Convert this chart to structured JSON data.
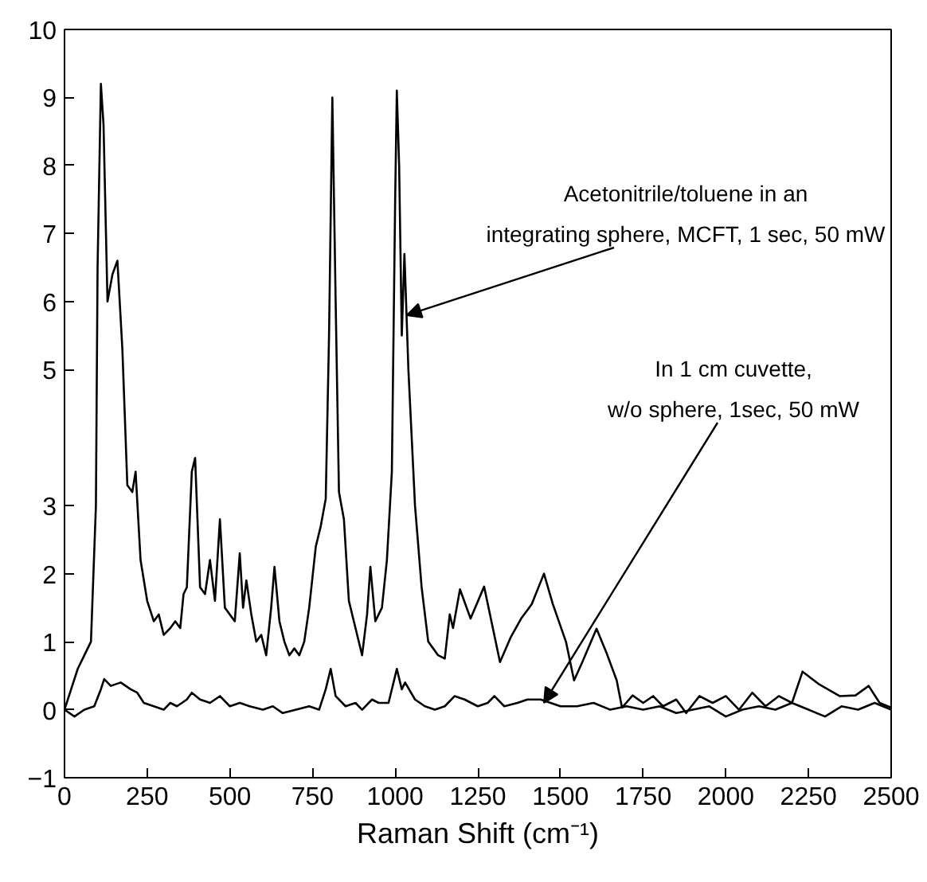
{
  "chart_data": {
    "type": "line",
    "xlabel": "Raman Shift (cm⁻¹)",
    "xlim": [
      0,
      2500
    ],
    "xticks": [
      0,
      250,
      500,
      750,
      1000,
      1250,
      1500,
      1750,
      2000,
      2250,
      2500
    ],
    "ylim": [
      -1,
      10
    ],
    "yticks": [
      -1,
      0,
      1,
      2,
      3,
      5,
      6,
      7,
      8,
      9,
      10
    ],
    "grid": false,
    "marker": "none",
    "line_style": "solid",
    "series": [
      {
        "color": "#000000",
        "x": [
          0,
          20,
          40,
          60,
          80,
          95,
          100,
          110,
          118,
          130,
          145,
          160,
          175,
          190,
          205,
          215,
          230,
          250,
          270,
          285,
          300,
          320,
          335,
          350,
          360,
          370,
          385,
          395,
          410,
          425,
          440,
          455,
          470,
          485,
          500,
          515,
          530,
          540,
          550,
          565,
          580,
          595,
          610,
          625,
          635,
          650,
          665,
          680,
          695,
          710,
          725,
          740,
          760,
          775,
          790,
          800,
          810,
          820,
          830,
          845,
          860,
          880,
          900,
          915,
          925,
          940,
          960,
          975,
          990,
          1000,
          1005,
          1012,
          1020,
          1028,
          1040,
          1060,
          1080,
          1100,
          1115,
          1130,
          1150,
          1165,
          1175,
          1196,
          1228,
          1269,
          1317,
          1349,
          1381,
          1413,
          1450,
          1477,
          1517,
          1541,
          1566,
          1609,
          1638,
          1670,
          1686,
          1718,
          1750,
          1780,
          1810,
          1850,
          1880,
          1920,
          1960,
          2000,
          2040,
          2080,
          2120,
          2160,
          2200,
          2232,
          2280,
          2344,
          2392,
          2432,
          2465,
          2500
        ],
        "values": [
          0,
          0.3,
          0.6,
          0.8,
          1.0,
          3,
          6.5,
          9.2,
          8.6,
          6.0,
          6.4,
          6.6,
          5.3,
          3.3,
          3.2,
          3.5,
          2.2,
          1.6,
          1.3,
          1.4,
          1.1,
          1.2,
          1.3,
          1.2,
          1.7,
          1.8,
          3.5,
          3.7,
          1.8,
          1.7,
          2.2,
          1.6,
          2.8,
          1.5,
          1.4,
          1.3,
          2.3,
          1.5,
          1.9,
          1.4,
          1.0,
          1.1,
          0.8,
          1.5,
          2.1,
          1.3,
          1.0,
          0.8,
          0.9,
          0.8,
          1.0,
          1.5,
          2.4,
          2.7,
          3.1,
          5.5,
          9.0,
          6.0,
          3.2,
          2.8,
          1.6,
          1.2,
          0.8,
          1.4,
          2.1,
          1.3,
          1.5,
          2.2,
          3.5,
          7.5,
          9.1,
          8.0,
          5.5,
          6.7,
          5.0,
          3.0,
          1.8,
          1.0,
          0.9,
          0.8,
          0.75,
          1.4,
          1.2,
          1.77,
          1.34,
          1.81,
          0.7,
          1.06,
          1.34,
          1.55,
          2.0,
          1.55,
          0.99,
          0.43,
          0.7,
          1.19,
          0.85,
          0.43,
          0.03,
          0.21,
          0.1,
          0.2,
          0.05,
          0.15,
          -0.05,
          0.2,
          0.1,
          0.2,
          0.0,
          0.25,
          0.05,
          0.2,
          0.1,
          0.56,
          0.38,
          0.2,
          0.21,
          0.35,
          0.1,
          0.03
        ]
      },
      {
        "color": "#000000",
        "x": [
          0,
          30,
          60,
          90,
          110,
          120,
          140,
          170,
          200,
          220,
          240,
          270,
          300,
          320,
          340,
          370,
          385,
          410,
          440,
          470,
          500,
          530,
          560,
          600,
          630,
          660,
          700,
          740,
          770,
          790,
          805,
          820,
          850,
          880,
          900,
          930,
          950,
          980,
          1000,
          1005,
          1020,
          1030,
          1060,
          1090,
          1120,
          1150,
          1180,
          1210,
          1250,
          1280,
          1300,
          1330,
          1370,
          1400,
          1440,
          1470,
          1500,
          1550,
          1600,
          1650,
          1700,
          1750,
          1800,
          1850,
          1900,
          1950,
          2000,
          2050,
          2100,
          2150,
          2200,
          2250,
          2300,
          2350,
          2400,
          2450,
          2500
        ],
        "values": [
          0,
          -0.1,
          0,
          0.05,
          0.3,
          0.45,
          0.35,
          0.4,
          0.3,
          0.25,
          0.1,
          0.05,
          0.0,
          0.1,
          0.05,
          0.15,
          0.25,
          0.15,
          0.1,
          0.2,
          0.05,
          0.1,
          0.05,
          0.0,
          0.05,
          -0.05,
          0.0,
          0.05,
          0.0,
          0.3,
          0.6,
          0.2,
          0.05,
          0.1,
          0.0,
          0.15,
          0.1,
          0.1,
          0.5,
          0.6,
          0.3,
          0.4,
          0.15,
          0.05,
          0.0,
          0.05,
          0.2,
          0.15,
          0.05,
          0.1,
          0.2,
          0.05,
          0.1,
          0.15,
          0.15,
          0.1,
          0.05,
          0.05,
          0.1,
          0.0,
          0.05,
          0.0,
          0.05,
          -0.05,
          0.0,
          0.05,
          -0.1,
          0.0,
          0.05,
          0.0,
          0.1,
          0.0,
          -0.1,
          0.05,
          0.0,
          0.1,
          0.0
        ]
      }
    ],
    "annotations": [
      {
        "text": "Acetonitrile/toluene in an\nintegrating sphere, MCFT, 1 sec, 50 mW",
        "x": 1035,
        "y": 5.8
      },
      {
        "text": "In 1 cm cuvette,\nw/o sphere, 1sec, 50 mW",
        "x": 1450,
        "y": 0.1
      }
    ]
  }
}
